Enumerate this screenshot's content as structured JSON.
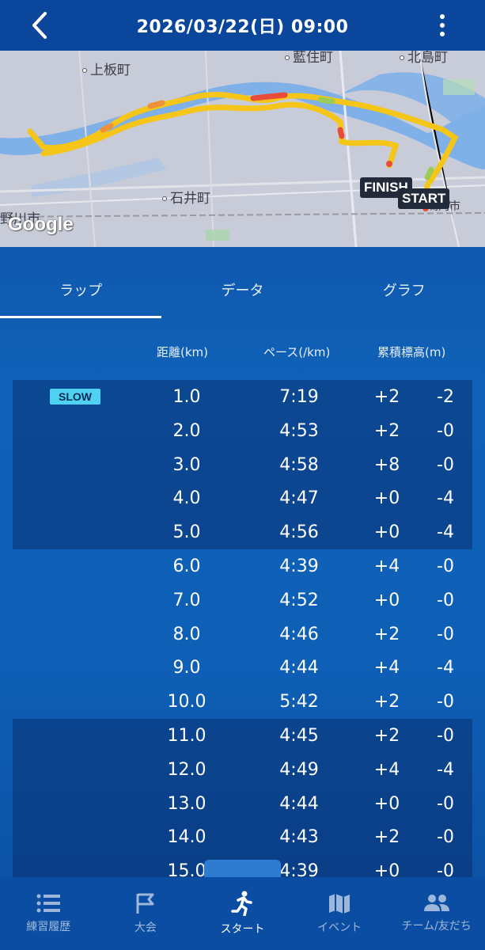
{
  "header": {
    "title": "2026/03/22(日) 09:00",
    "back_icon": "chevron-left-icon",
    "menu_icon": "more-vertical-icon"
  },
  "map": {
    "labels": {
      "kamiita": "上板町",
      "aizumi": "藍住町",
      "kitajima": "北島町",
      "ishii": "石井町",
      "yoshinogawa": "野川市",
      "naruto": "鳴門市"
    },
    "finish_tag": "FINISH",
    "start_tag": "START",
    "google": "Google"
  },
  "tabs": [
    {
      "label": "ラップ",
      "active": true
    },
    {
      "label": "データ",
      "active": false
    },
    {
      "label": "グラフ",
      "active": false
    }
  ],
  "columns": {
    "distance": "距離(km)",
    "pace": "ペース(/km)",
    "elevation": "累積標高(m)"
  },
  "slow_badge": "SLOW",
  "laps": [
    {
      "dist": "1.0",
      "pace": "7:19",
      "up": "+2",
      "down": "-2"
    },
    {
      "dist": "2.0",
      "pace": "4:53",
      "up": "+2",
      "down": "-0"
    },
    {
      "dist": "3.0",
      "pace": "4:58",
      "up": "+8",
      "down": "-0"
    },
    {
      "dist": "4.0",
      "pace": "4:47",
      "up": "+0",
      "down": "-4"
    },
    {
      "dist": "5.0",
      "pace": "4:56",
      "up": "+0",
      "down": "-4"
    },
    {
      "dist": "6.0",
      "pace": "4:39",
      "up": "+4",
      "down": "-0"
    },
    {
      "dist": "7.0",
      "pace": "4:52",
      "up": "+0",
      "down": "-0"
    },
    {
      "dist": "8.0",
      "pace": "4:46",
      "up": "+2",
      "down": "-0"
    },
    {
      "dist": "9.0",
      "pace": "4:44",
      "up": "+4",
      "down": "-4"
    },
    {
      "dist": "10.0",
      "pace": "5:42",
      "up": "+2",
      "down": "-0"
    },
    {
      "dist": "11.0",
      "pace": "4:45",
      "up": "+2",
      "down": "-0"
    },
    {
      "dist": "12.0",
      "pace": "4:49",
      "up": "+4",
      "down": "-4"
    },
    {
      "dist": "13.0",
      "pace": "4:44",
      "up": "+0",
      "down": "-0"
    },
    {
      "dist": "14.0",
      "pace": "4:43",
      "up": "+2",
      "down": "-0"
    },
    {
      "dist": "15.0",
      "pace": "4:39",
      "up": "+0",
      "down": "-0"
    }
  ],
  "nav": [
    {
      "label": "練習履歴",
      "icon": "list-icon",
      "active": false
    },
    {
      "label": "大会",
      "icon": "flag-icon",
      "active": false
    },
    {
      "label": "スタート",
      "icon": "runner-icon",
      "active": true
    },
    {
      "label": "イベント",
      "icon": "map-icon",
      "active": false
    },
    {
      "label": "チーム/友だち",
      "icon": "people-icon",
      "active": false
    }
  ],
  "colors": {
    "header_bg": "#0a479c",
    "badge_bg": "#4fd2f2",
    "route_yellow": "#f5c518",
    "route_red": "#e84b3a"
  }
}
